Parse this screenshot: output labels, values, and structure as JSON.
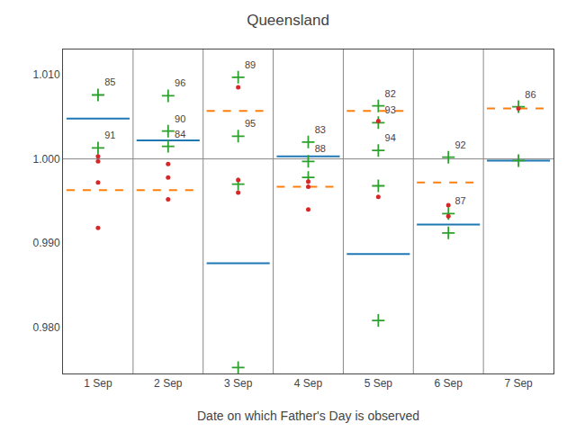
{
  "chart_data": {
    "type": "scatter",
    "title": "Queensland",
    "xlabel": "Date on which Father's Day is observed",
    "categories": [
      "1 Sep",
      "2 Sep",
      "3 Sep",
      "4 Sep",
      "5 Sep",
      "6 Sep",
      "7 Sep"
    ],
    "ylim": [
      0.9745,
      1.013
    ],
    "yticks": [
      {
        "value": 0.98,
        "label": "0.980"
      },
      {
        "value": 0.99,
        "label": "0.990"
      },
      {
        "value": 1.0,
        "label": "1.000"
      },
      {
        "value": 1.01,
        "label": "1.010"
      }
    ],
    "hline": 1.0,
    "grid": false,
    "series": [
      {
        "type": "segment",
        "line_style": "solid",
        "values": [
          1.0048,
          1.0022,
          0.9876,
          1.0003,
          0.9887,
          0.9922,
          0.9998
        ]
      },
      {
        "type": "segment",
        "line_style": "dashed",
        "values": [
          0.9963,
          0.9963,
          1.0057,
          0.9967,
          1.0057,
          0.9972,
          1.006
        ]
      },
      {
        "type": "scatter",
        "marker": "plus",
        "points": [
          {
            "x": "1 Sep",
            "y": 1.0076,
            "label": "85"
          },
          {
            "x": "1 Sep",
            "y": 1.0013,
            "label": "91"
          },
          {
            "x": "2 Sep",
            "y": 1.0075,
            "label": "96"
          },
          {
            "x": "2 Sep",
            "y": 1.0033,
            "label": "90"
          },
          {
            "x": "2 Sep",
            "y": 1.0015,
            "label": "84"
          },
          {
            "x": "3 Sep",
            "y": 1.0097,
            "label": "89"
          },
          {
            "x": "3 Sep",
            "y": 1.0027,
            "label": "95"
          },
          {
            "x": "3 Sep",
            "y": 0.997
          },
          {
            "x": "3 Sep",
            "y": 0.9752
          },
          {
            "x": "4 Sep",
            "y": 1.002,
            "label": "83"
          },
          {
            "x": "4 Sep",
            "y": 0.9997,
            "label": "88"
          },
          {
            "x": "4 Sep",
            "y": 0.9978
          },
          {
            "x": "5 Sep",
            "y": 1.0063,
            "label": "82"
          },
          {
            "x": "5 Sep",
            "y": 1.0043,
            "label": "93"
          },
          {
            "x": "5 Sep",
            "y": 1.001,
            "label": "94"
          },
          {
            "x": "5 Sep",
            "y": 0.9968
          },
          {
            "x": "5 Sep",
            "y": 0.9808
          },
          {
            "x": "6 Sep",
            "y": 1.0002,
            "label": "92"
          },
          {
            "x": "6 Sep",
            "y": 0.9935,
            "label": "87"
          },
          {
            "x": "6 Sep",
            "y": 0.9912
          },
          {
            "x": "7 Sep",
            "y": 1.0062,
            "label": "86"
          },
          {
            "x": "7 Sep",
            "y": 0.9998
          }
        ]
      },
      {
        "type": "scatter",
        "marker": "dot",
        "points": [
          {
            "x": "1 Sep",
            "y": 1.0003
          },
          {
            "x": "1 Sep",
            "y": 0.9972
          },
          {
            "x": "1 Sep",
            "y": 0.9918
          },
          {
            "x": "1 Sep",
            "y": 0.9997
          },
          {
            "x": "2 Sep",
            "y": 0.9978
          },
          {
            "x": "2 Sep",
            "y": 0.9952
          },
          {
            "x": "2 Sep",
            "y": 0.9994
          },
          {
            "x": "3 Sep",
            "y": 1.0085
          },
          {
            "x": "3 Sep",
            "y": 0.9975
          },
          {
            "x": "3 Sep",
            "y": 0.996
          },
          {
            "x": "4 Sep",
            "y": 0.9973
          },
          {
            "x": "4 Sep",
            "y": 0.994
          },
          {
            "x": "4 Sep",
            "y": 0.9967
          },
          {
            "x": "5 Sep",
            "y": 1.0045
          },
          {
            "x": "5 Sep",
            "y": 0.9955
          },
          {
            "x": "6 Sep",
            "y": 0.9945
          },
          {
            "x": "6 Sep",
            "y": 0.9932
          },
          {
            "x": "7 Sep",
            "y": 1.006
          }
        ]
      }
    ]
  }
}
